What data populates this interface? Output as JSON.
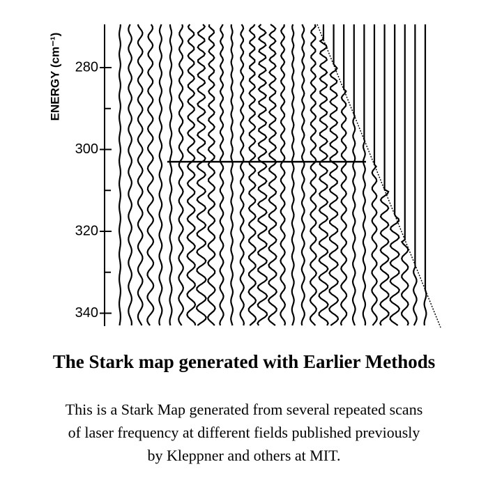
{
  "figure": {
    "axis_label": "ENERGY (cm⁻¹)",
    "ylim": [
      269,
      343
    ],
    "yticks": [
      280,
      300,
      320,
      340
    ],
    "minor_yticks": [
      290,
      310,
      330
    ]
  },
  "title": "The Stark map generated with Earlier Methods",
  "caption": [
    "This is a Stark Map generated from several repeated scans",
    "of laser frequency at different  fields published previously",
    "by Kleppner and others at MIT."
  ]
}
